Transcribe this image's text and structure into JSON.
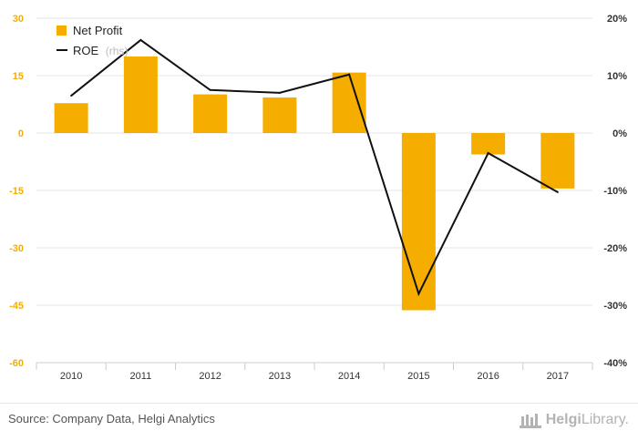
{
  "chart_data": {
    "type": "bar",
    "categories": [
      "2010",
      "2011",
      "2012",
      "2013",
      "2014",
      "2015",
      "2016",
      "2017"
    ],
    "series": [
      {
        "name": "Net Profit",
        "type": "bar",
        "axis": "left",
        "color": "#f5ad00",
        "values": [
          7.8,
          20.0,
          10.1,
          9.3,
          15.8,
          -46.3,
          -5.6,
          -14.5
        ]
      },
      {
        "name": "ROE",
        "name_suffix": "(rhs)",
        "type": "line",
        "axis": "right",
        "color": "#111111",
        "values": [
          6.5,
          16.2,
          7.5,
          7.0,
          10.2,
          -28.0,
          -3.5,
          -10.3
        ]
      }
    ],
    "left_axis": {
      "ylim": [
        -60,
        30
      ],
      "ticks": [
        30,
        15,
        0,
        -15,
        -30,
        -45,
        -60
      ],
      "tick_labels": [
        "30",
        "15",
        "0",
        "-15",
        "-30",
        "-45",
        "-60"
      ]
    },
    "right_axis": {
      "ylim": [
        -40,
        20
      ],
      "ticks": [
        20,
        10,
        0,
        -10,
        -20,
        -30,
        -40
      ],
      "tick_labels": [
        "20%",
        "10%",
        "0%",
        "-10%",
        "-20%",
        "-30%",
        "-40%"
      ]
    },
    "grid": true,
    "legend_position": "top-left"
  },
  "footer": {
    "source": "Source: Company Data, Helgi Analytics",
    "logo_name": "Helgi",
    "logo_suffix": "Library."
  }
}
